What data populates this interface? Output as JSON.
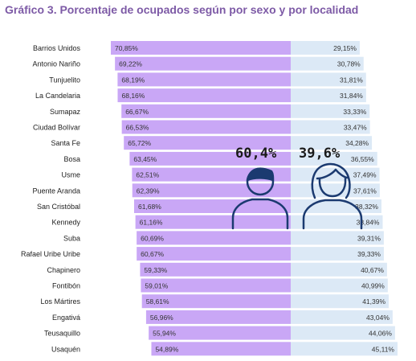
{
  "title": "Gráfico 3. Porcentaje de ocupados según por sexo y por localidad",
  "chart_data": {
    "type": "bar",
    "stacked": true,
    "orientation": "horizontal",
    "categories": [
      "Barrios Unidos",
      "Antonio Nariño",
      "Tunjuelito",
      "La Candelaria",
      "Sumapaz",
      "Ciudad Bolívar",
      "Santa Fe",
      "Bosa",
      "Usme",
      "Puente Aranda",
      "San Cristóbal",
      "Kennedy",
      "Suba",
      "Rafael Uribe Uribe",
      "Chapinero",
      "Fontibón",
      "Los Mártires",
      "Engativá",
      "Teusaquillo",
      "Usaquén"
    ],
    "series": [
      {
        "color": "#c9a7f6",
        "values": [
          70.85,
          69.22,
          68.19,
          68.16,
          66.67,
          66.53,
          65.72,
          63.45,
          62.51,
          62.39,
          61.68,
          61.16,
          60.69,
          60.67,
          59.33,
          59.01,
          58.61,
          56.96,
          55.94,
          54.89
        ],
        "labels": [
          "70,85%",
          "69,22%",
          "68,19%",
          "68,16%",
          "66,67%",
          "66,53%",
          "65,72%",
          "63,45%",
          "62,51%",
          "62,39%",
          "61,68%",
          "61,16%",
          "60,69%",
          "60,67%",
          "59,33%",
          "59,01%",
          "58,61%",
          "56,96%",
          "55,94%",
          "54,89%"
        ]
      },
      {
        "color": "#dce9f6",
        "values": [
          29.15,
          30.78,
          31.81,
          31.84,
          33.33,
          33.47,
          34.28,
          36.55,
          37.49,
          37.61,
          38.32,
          38.84,
          39.31,
          39.33,
          40.67,
          40.99,
          41.39,
          43.04,
          44.06,
          45.11
        ],
        "labels": [
          "29,15%",
          "30,78%",
          "31,81%",
          "31,84%",
          "33,33%",
          "33,47%",
          "34,28%",
          "36,55%",
          "37,49%",
          "37,61%",
          "38,32%",
          "38,84%",
          "39,31%",
          "39,33%",
          "40,67%",
          "40,99%",
          "41,39%",
          "43,04%",
          "44,06%",
          "45,11%"
        ]
      }
    ],
    "annotations": [
      {
        "text": "60,4%",
        "icon": "man-icon"
      },
      {
        "text": "39,6%",
        "icon": "woman-icon"
      }
    ]
  }
}
